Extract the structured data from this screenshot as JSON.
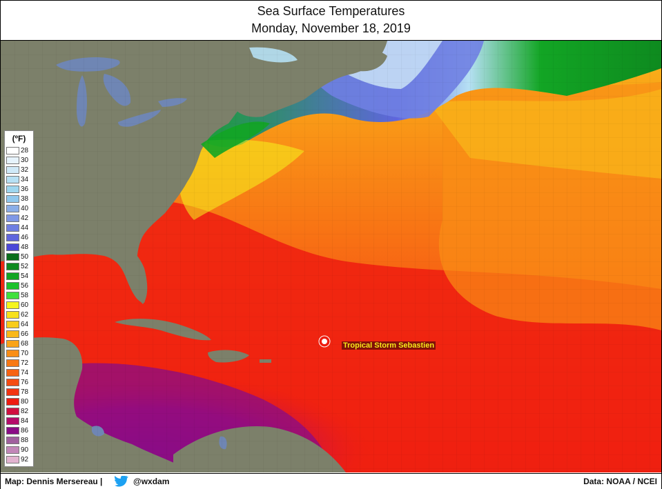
{
  "header": {
    "title": "Sea Surface Temperatures",
    "subtitle": "Monday, November 18, 2019"
  },
  "legend": {
    "title": "(ºF)",
    "items": [
      {
        "label": "28",
        "color": "#ffffff"
      },
      {
        "label": "30",
        "color": "#e6f3fc"
      },
      {
        "label": "32",
        "color": "#cfe9f8"
      },
      {
        "label": "34",
        "color": "#b6e0f4"
      },
      {
        "label": "36",
        "color": "#9dd6ef"
      },
      {
        "label": "38",
        "color": "#8fc8ee"
      },
      {
        "label": "40",
        "color": "#8aaee8"
      },
      {
        "label": "42",
        "color": "#7f98e6"
      },
      {
        "label": "44",
        "color": "#6f7fe2"
      },
      {
        "label": "46",
        "color": "#5f66dd"
      },
      {
        "label": "48",
        "color": "#4b48d8"
      },
      {
        "label": "50",
        "color": "#0a6f1a"
      },
      {
        "label": "52",
        "color": "#0e8a1f"
      },
      {
        "label": "54",
        "color": "#12a524"
      },
      {
        "label": "56",
        "color": "#1cc12c"
      },
      {
        "label": "58",
        "color": "#3fe03c"
      },
      {
        "label": "60",
        "color": "#f5f51e"
      },
      {
        "label": "62",
        "color": "#f7e11c"
      },
      {
        "label": "64",
        "color": "#f8cc1b"
      },
      {
        "label": "66",
        "color": "#f9b81a"
      },
      {
        "label": "68",
        "color": "#f9a318"
      },
      {
        "label": "70",
        "color": "#f98e16"
      },
      {
        "label": "72",
        "color": "#f87914"
      },
      {
        "label": "74",
        "color": "#f76413"
      },
      {
        "label": "76",
        "color": "#f54c12"
      },
      {
        "label": "78",
        "color": "#f23411"
      },
      {
        "label": "80",
        "color": "#ee1c10"
      },
      {
        "label": "82",
        "color": "#d01040"
      },
      {
        "label": "84",
        "color": "#b40c6a"
      },
      {
        "label": "86",
        "color": "#8a0c86"
      },
      {
        "label": "88",
        "color": "#a0609e"
      },
      {
        "label": "90",
        "color": "#c287b8"
      },
      {
        "label": "92",
        "color": "#e2b3cf"
      }
    ]
  },
  "map": {
    "storm_label": "Tropical Storm Sebastien",
    "colors": {
      "land": "#7c806a",
      "lakes": "#6f86b4",
      "ocean_warm": "#ee1c10",
      "ocean_orange": "#f98e16",
      "ocean_purple": "#8a0c86",
      "ocean_green": "#12a524",
      "ocean_blue": "#6f7fe2"
    }
  },
  "footer": {
    "map_credit": "Map: Dennis Mersereau |",
    "handle": "@wxdam",
    "data_credit": "Data: NOAA / NCEI"
  }
}
